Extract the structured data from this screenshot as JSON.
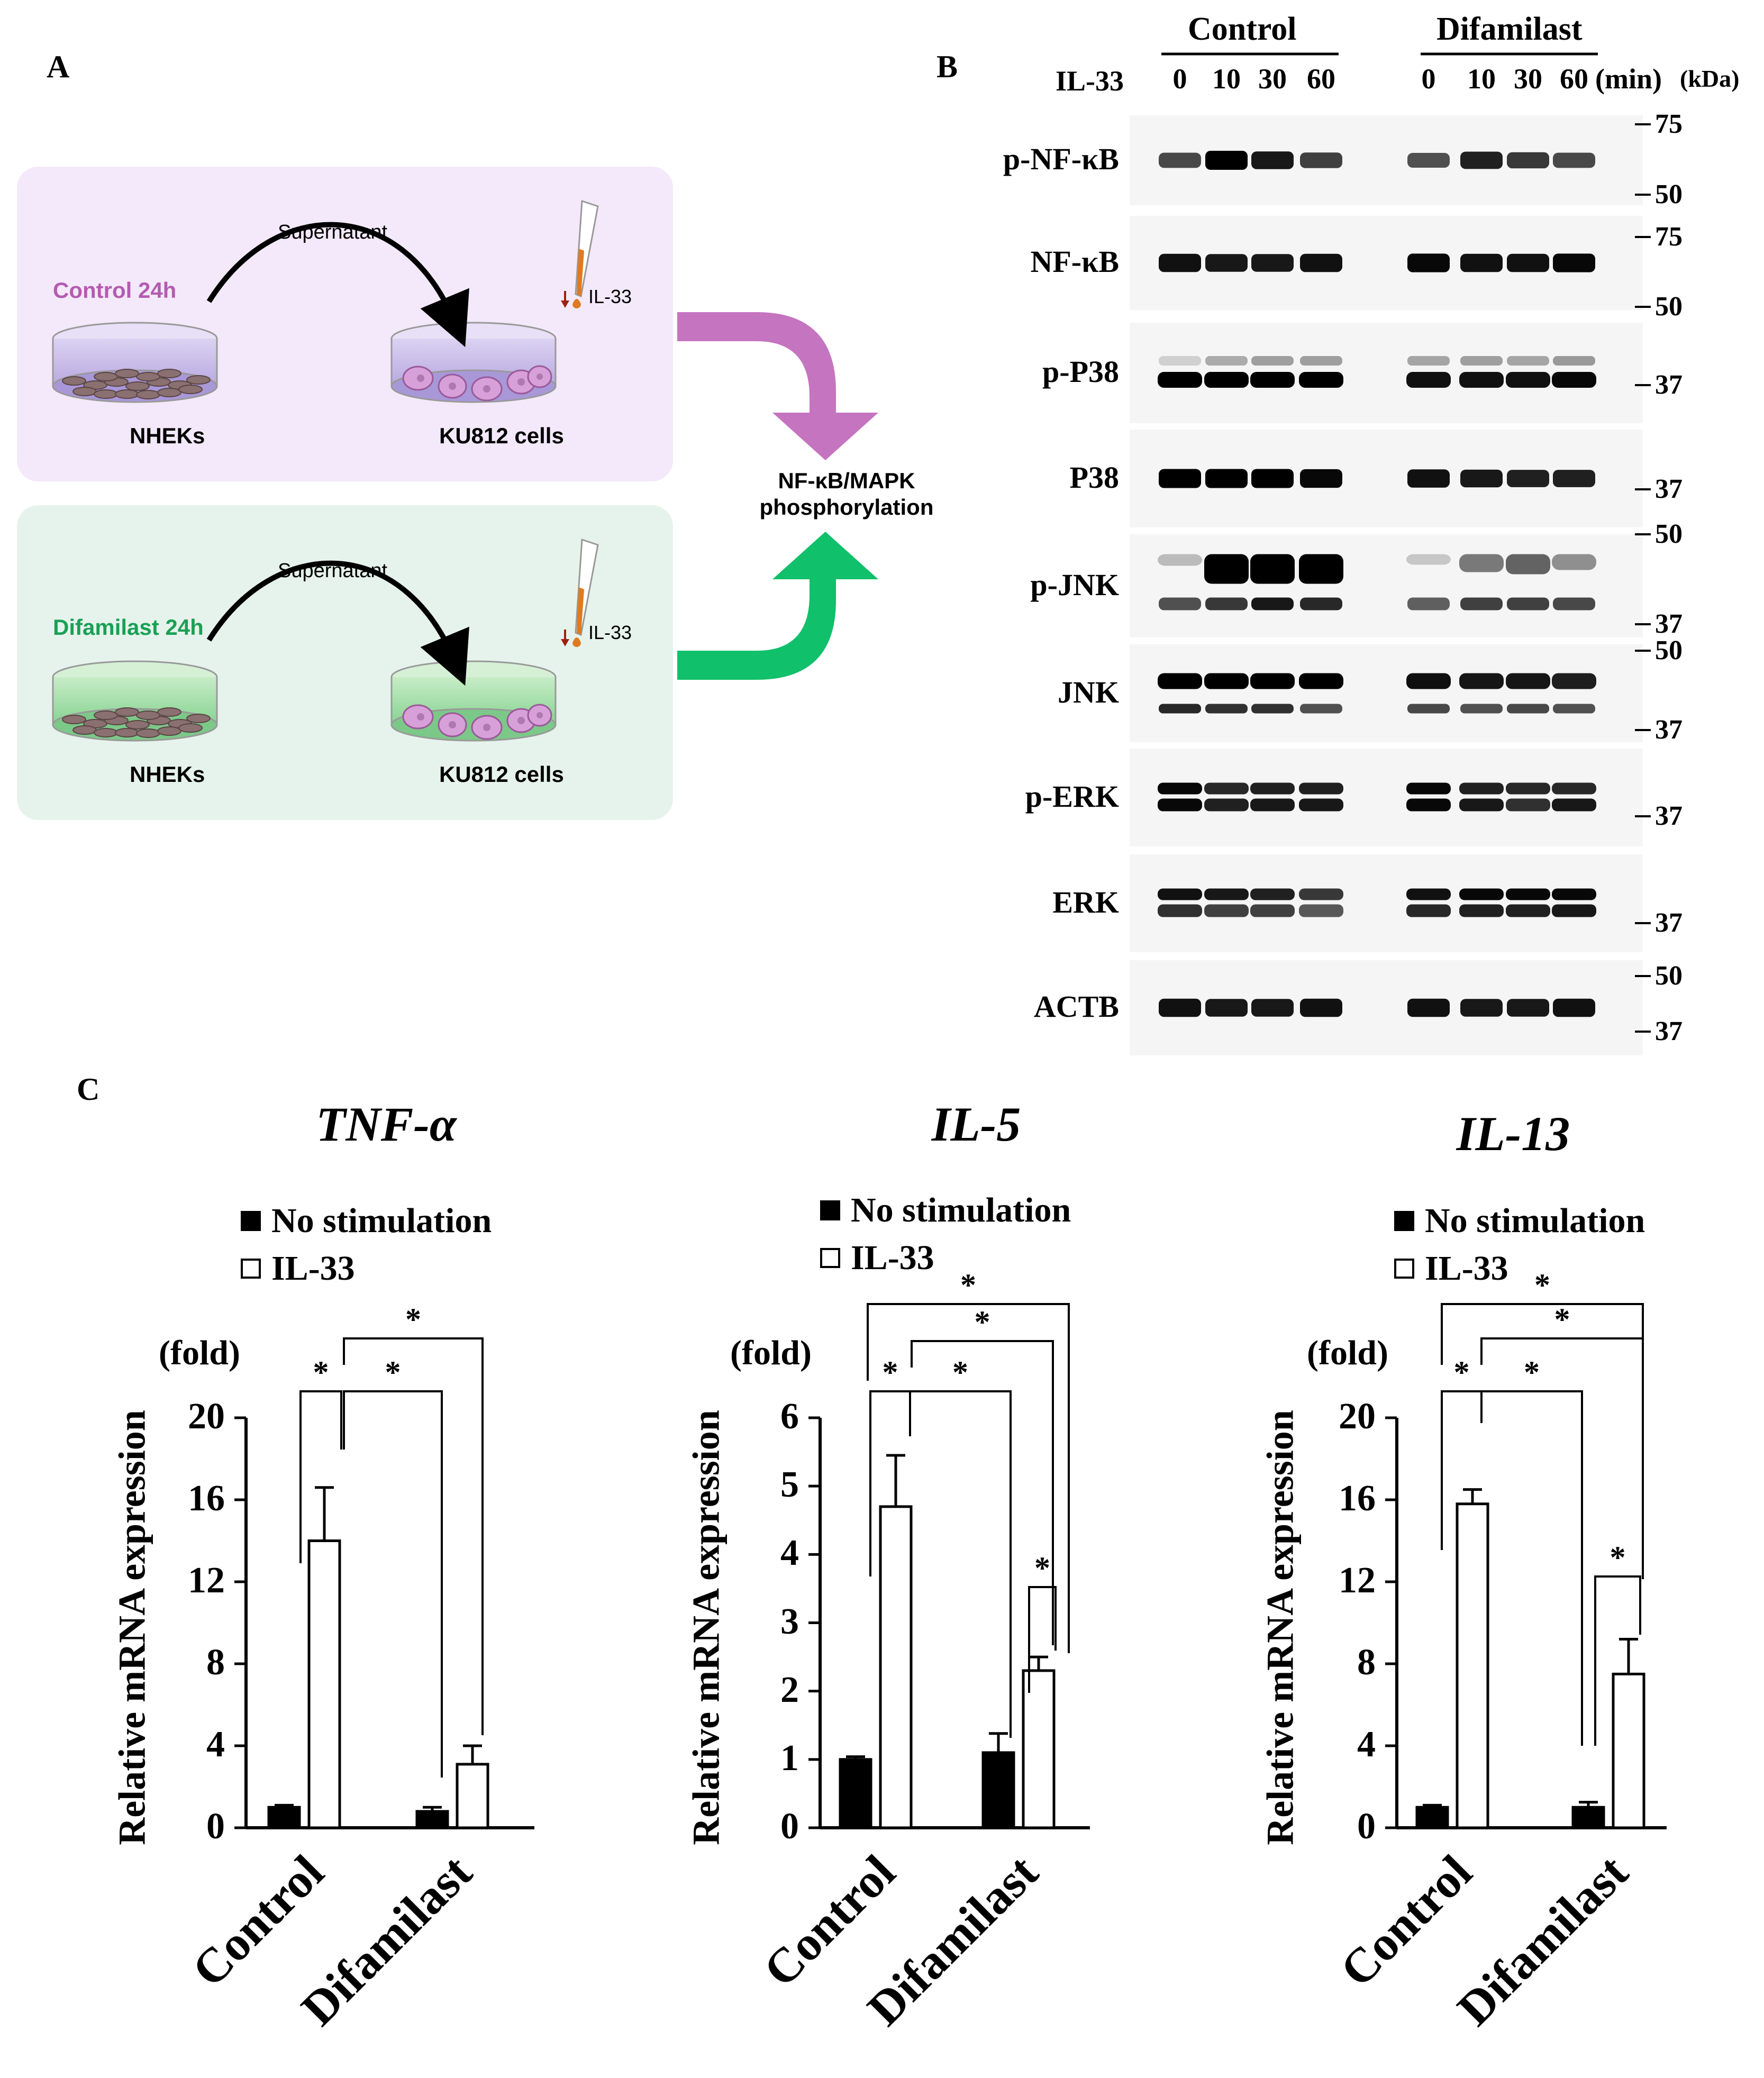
{
  "panel_labels": {
    "a": "A",
    "b": "B",
    "c": "C"
  },
  "panelA": {
    "supernatant": "Supernatant",
    "il33": "IL-33",
    "control_label": "Control 24h",
    "difamilast_label": "Difamilast 24h",
    "nheks": "NHEKs",
    "ku812": "KU812 cells",
    "result_line1": "NF-κB/MAPK",
    "result_line2": "phosphorylation",
    "colors": {
      "control_bg": "#f3e9fa",
      "difamilast_bg": "#e6f3ec",
      "control_arrow": "#c574c0",
      "difamilast_arrow": "#10c06a",
      "control_text": "#b45bb0",
      "difamilast_text": "#1aa055"
    }
  },
  "panelB": {
    "group_control": "Control",
    "group_difamilast": "Difamilast",
    "il33_label": "IL-33",
    "timepoints": [
      "0",
      "10",
      "30",
      "60"
    ],
    "last_timepoint_suffix": "(min)",
    "kda_label": "(kDa)",
    "blots": [
      {
        "name": "p-NF-κB",
        "markers": [
          "75",
          "50"
        ]
      },
      {
        "name": "NF-κB",
        "markers": [
          "75",
          "50"
        ]
      },
      {
        "name": "p-P38",
        "markers": [
          "37"
        ]
      },
      {
        "name": "P38",
        "markers": [
          "37"
        ]
      },
      {
        "name": "p-JNK",
        "markers": [
          "50",
          "37"
        ]
      },
      {
        "name": "JNK",
        "markers": [
          "50",
          "37"
        ]
      },
      {
        "name": "p-ERK",
        "markers": [
          "37"
        ]
      },
      {
        "name": "ERK",
        "markers": [
          "37"
        ]
      },
      {
        "name": "ACTB",
        "markers": [
          "50",
          "37"
        ]
      }
    ]
  },
  "chart_data": [
    {
      "type": "bar",
      "title": "TNF-α",
      "ylabel": "Relative mRNA expression",
      "yunit": "(fold)",
      "categories": [
        "Control",
        "Difamilast"
      ],
      "ylim": [
        0,
        20
      ],
      "yticks": [
        "0",
        "4",
        "8",
        "12",
        "16",
        "20"
      ],
      "series": [
        {
          "name": "No stimulation",
          "values": [
            1.0,
            0.8
          ],
          "errors": [
            0.1,
            0.2
          ],
          "color": "#000000"
        },
        {
          "name": "IL-33",
          "values": [
            14.0,
            3.1
          ],
          "errors": [
            2.6,
            0.9
          ],
          "color": "#ffffff"
        }
      ],
      "significance": [
        "*",
        "*",
        "*"
      ]
    },
    {
      "type": "bar",
      "title": "IL-5",
      "ylabel": "Relative mRNA expression",
      "yunit": "(fold)",
      "categories": [
        "Control",
        "Difamilast"
      ],
      "ylim": [
        0,
        6
      ],
      "yticks": [
        "0",
        "1",
        "2",
        "3",
        "4",
        "5",
        "6"
      ],
      "series": [
        {
          "name": "No stimulation",
          "values": [
            1.0,
            1.1
          ],
          "errors": [
            0.04,
            0.28
          ],
          "color": "#000000"
        },
        {
          "name": "IL-33",
          "values": [
            4.7,
            2.3
          ],
          "errors": [
            0.75,
            0.2
          ],
          "color": "#ffffff"
        }
      ],
      "significance": [
        "*",
        "*",
        "*",
        "*",
        "*"
      ]
    },
    {
      "type": "bar",
      "title": "IL-13",
      "ylabel": "Relative mRNA expression",
      "yunit": "(fold)",
      "categories": [
        "Control",
        "Difamilast"
      ],
      "ylim": [
        0,
        20
      ],
      "yticks": [
        "0",
        "4",
        "8",
        "12",
        "16",
        "20"
      ],
      "series": [
        {
          "name": "No stimulation",
          "values": [
            1.0,
            1.0
          ],
          "errors": [
            0.1,
            0.25
          ],
          "color": "#000000"
        },
        {
          "name": "IL-33",
          "values": [
            15.8,
            7.5
          ],
          "errors": [
            0.7,
            1.7
          ],
          "color": "#ffffff"
        }
      ],
      "significance": [
        "*",
        "*",
        "*",
        "*",
        "*"
      ]
    }
  ]
}
